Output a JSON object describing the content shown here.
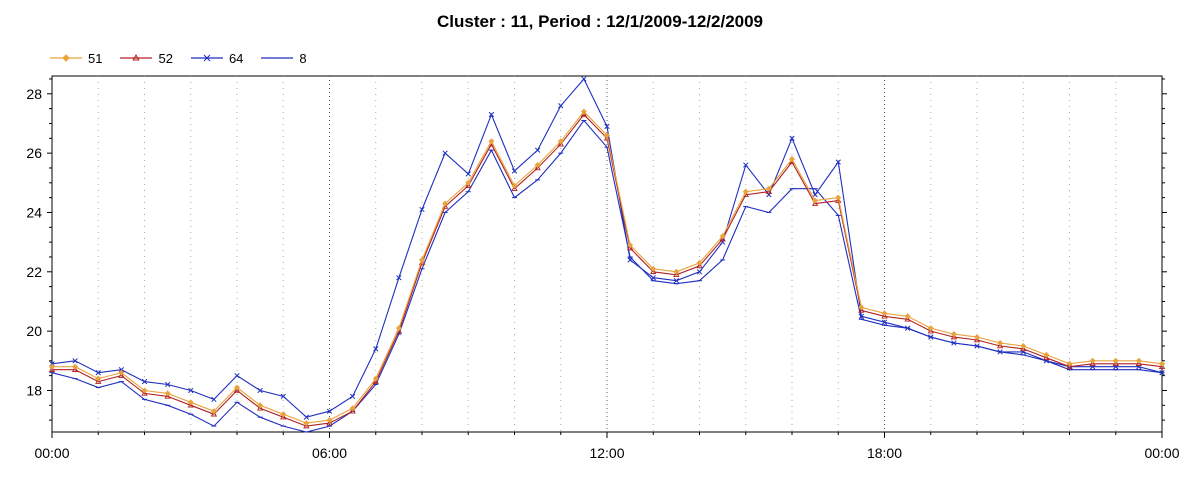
{
  "chart_data": {
    "type": "line",
    "title": "Cluster : 11, Period : 12/1/2009-12/2/2009",
    "xlabel": "",
    "ylabel": "",
    "x_unit": "hours",
    "x_range": [
      0,
      24
    ],
    "ylim": [
      16.6,
      28.6
    ],
    "x_tick_labels": [
      "00:00",
      "06:00",
      "12:00",
      "18:00",
      "00:00"
    ],
    "y_tick_labels": [
      "18",
      "20",
      "22",
      "24",
      "26",
      "28"
    ],
    "grid": "dotted vertical lines",
    "legend_position": "top-left",
    "series": [
      {
        "name": "51",
        "color": "#e8a33c",
        "marker": "diamond",
        "x": [
          0,
          0.5,
          1,
          1.5,
          2,
          2.5,
          3,
          3.5,
          4,
          4.5,
          5,
          5.5,
          6,
          6.5,
          7,
          7.5,
          8,
          8.5,
          9,
          9.5,
          10,
          10.5,
          11,
          11.5,
          12,
          12.5,
          13,
          13.5,
          14,
          14.5,
          15,
          15.5,
          16,
          16.5,
          17,
          17.5,
          18,
          18.5,
          19,
          19.5,
          20,
          20.5,
          21,
          21.5,
          22,
          22.5,
          23,
          23.5,
          24
        ],
        "y": [
          18.8,
          18.8,
          18.4,
          18.6,
          18.0,
          17.9,
          17.6,
          17.3,
          18.1,
          17.5,
          17.2,
          16.9,
          17.0,
          17.4,
          18.4,
          20.1,
          22.4,
          24.3,
          25.0,
          26.4,
          24.9,
          25.6,
          26.4,
          27.4,
          26.6,
          22.9,
          22.1,
          22.0,
          22.3,
          23.2,
          24.7,
          24.8,
          25.8,
          24.4,
          24.5,
          20.8,
          20.6,
          20.5,
          20.1,
          19.9,
          19.8,
          19.6,
          19.5,
          19.2,
          18.9,
          19.0,
          19.0,
          19.0,
          18.9
        ]
      },
      {
        "name": "52",
        "color": "#b22222",
        "marker": "triangle",
        "x": [
          0,
          0.5,
          1,
          1.5,
          2,
          2.5,
          3,
          3.5,
          4,
          4.5,
          5,
          5.5,
          6,
          6.5,
          7,
          7.5,
          8,
          8.5,
          9,
          9.5,
          10,
          10.5,
          11,
          11.5,
          12,
          12.5,
          13,
          13.5,
          14,
          14.5,
          15,
          15.5,
          16,
          16.5,
          17,
          17.5,
          18,
          18.5,
          19,
          19.5,
          20,
          20.5,
          21,
          21.5,
          22,
          22.5,
          23,
          23.5,
          24
        ],
        "y": [
          18.7,
          18.7,
          18.3,
          18.5,
          17.9,
          17.8,
          17.5,
          17.2,
          18.0,
          17.4,
          17.1,
          16.8,
          16.9,
          17.3,
          18.3,
          20.0,
          22.3,
          24.2,
          24.9,
          26.3,
          24.8,
          25.5,
          26.3,
          27.3,
          26.5,
          22.8,
          22.0,
          21.9,
          22.2,
          23.1,
          24.6,
          24.7,
          25.7,
          24.3,
          24.4,
          20.7,
          20.5,
          20.4,
          20.0,
          19.8,
          19.7,
          19.5,
          19.4,
          19.1,
          18.8,
          18.9,
          18.9,
          18.9,
          18.8
        ]
      },
      {
        "name": "64",
        "color": "#1f2fbf",
        "marker": "x",
        "x": [
          0,
          0.5,
          1,
          1.5,
          2,
          2.5,
          3,
          3.5,
          4,
          4.5,
          5,
          5.5,
          6,
          6.5,
          7,
          7.5,
          8,
          8.5,
          9,
          9.5,
          10,
          10.5,
          11,
          11.5,
          12,
          12.5,
          13,
          13.5,
          14,
          14.5,
          15,
          15.5,
          16,
          16.5,
          17,
          17.5,
          18,
          18.5,
          19,
          19.5,
          20,
          20.5,
          21,
          21.5,
          22,
          22.5,
          23,
          23.5,
          24
        ],
        "y": [
          18.9,
          19.0,
          18.6,
          18.7,
          18.3,
          18.2,
          18.0,
          17.7,
          18.5,
          18.0,
          17.8,
          17.1,
          17.3,
          17.8,
          19.4,
          21.8,
          24.1,
          26.0,
          25.3,
          27.3,
          25.4,
          26.1,
          27.6,
          28.5,
          26.9,
          22.4,
          21.8,
          21.7,
          22.0,
          23.0,
          25.6,
          24.6,
          26.5,
          24.6,
          25.7,
          20.5,
          20.3,
          20.1,
          19.8,
          19.6,
          19.5,
          19.3,
          19.3,
          19.0,
          18.8,
          18.8,
          18.8,
          18.8,
          18.6
        ]
      },
      {
        "name": "8",
        "color": "#1f2fbf",
        "marker": "dash",
        "x": [
          0,
          0.5,
          1,
          1.5,
          2,
          2.5,
          3,
          3.5,
          4,
          4.5,
          5,
          5.5,
          6,
          6.5,
          7,
          7.5,
          8,
          8.5,
          9,
          9.5,
          10,
          10.5,
          11,
          11.5,
          12,
          12.5,
          13,
          13.5,
          14,
          14.5,
          15,
          15.5,
          16,
          16.5,
          17,
          17.5,
          18,
          18.5,
          19,
          19.5,
          20,
          20.5,
          21,
          21.5,
          22,
          22.5,
          23,
          23.5,
          24
        ],
        "y": [
          18.6,
          18.4,
          18.1,
          18.3,
          17.7,
          17.5,
          17.2,
          16.8,
          17.6,
          17.1,
          16.8,
          16.6,
          16.8,
          17.3,
          18.2,
          19.9,
          22.1,
          24.0,
          24.7,
          26.1,
          24.5,
          25.1,
          26.0,
          27.1,
          26.2,
          22.5,
          21.7,
          21.6,
          21.7,
          22.4,
          24.2,
          24.0,
          24.8,
          24.8,
          23.9,
          20.4,
          20.2,
          20.1,
          19.8,
          19.6,
          19.5,
          19.3,
          19.2,
          19.0,
          18.7,
          18.7,
          18.7,
          18.7,
          18.6
        ]
      }
    ]
  }
}
